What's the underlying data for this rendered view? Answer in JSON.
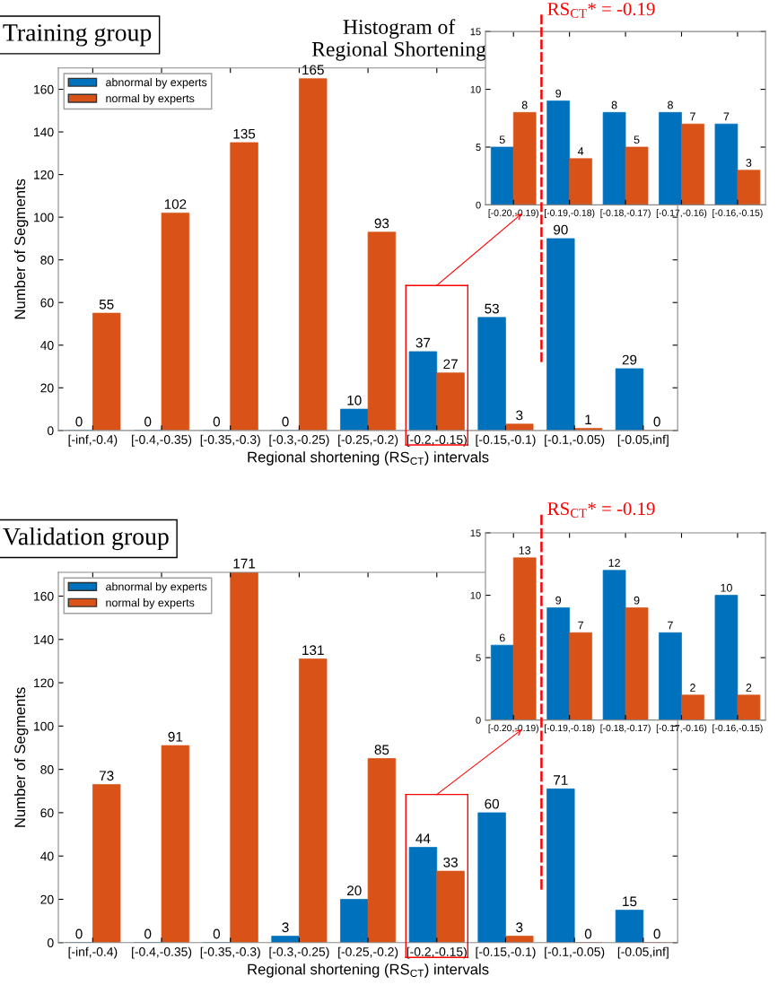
{
  "chart_data": [
    {
      "type": "bar",
      "title": "Histogram of\nRegional Shortening",
      "annotations": [
        "Training group"
      ],
      "xlabel": "Regional shortening (RS$_{CT}$) intervals",
      "ylabel": "Number of Segments",
      "categories": [
        "[-inf,-0.4)",
        "[-0.4,-0.35)",
        "[-0.35,-0.3)",
        "[-0.3,-0.25)",
        "[-0.25,-0.2)",
        "[-0.2,-0.15)",
        "[-0.15,-0.1)",
        "[-0.1,-0.05)",
        "[-0.05,inf]"
      ],
      "series": [
        {
          "name": "abnormal by experts",
          "color": "#0072bd",
          "values": [
            0,
            0,
            0,
            0,
            10,
            37,
            53,
            90,
            29
          ]
        },
        {
          "name": "normal by experts",
          "color": "#d95319",
          "values": [
            55,
            102,
            135,
            165,
            93,
            27,
            3,
            1,
            0
          ]
        }
      ],
      "ylim": [
        0,
        170
      ],
      "yticks": [
        0,
        20,
        40,
        60,
        80,
        100,
        120,
        140,
        160
      ],
      "data_labels": true,
      "legend": "top left",
      "grid": false
    },
    {
      "type": "bar",
      "categories": [
        "[-0.20,-0.19)",
        "[-0.19,-0.18)",
        "[-0.18,-0.17)",
        "[-0.17,-0.16)",
        "[-0.16,-0.15)"
      ],
      "series": [
        {
          "color": "#0072bd",
          "values": [
            5,
            9,
            8,
            8,
            7
          ]
        },
        {
          "color": "#d95319",
          "values": [
            8,
            4,
            5,
            7,
            3
          ]
        }
      ],
      "ylim": [
        0,
        15
      ],
      "yticks": [
        0,
        5,
        10,
        15
      ],
      "data_labels": true,
      "grid": false,
      "annotations": [
        "RS$_{CT}$* = -0.19"
      ]
    },
    {
      "type": "bar",
      "annotations": [
        "Validation group"
      ],
      "xlabel": "Regional shortening (RS$_{CT}$) intervals",
      "ylabel": "Number of Segments",
      "categories": [
        "[-inf,-0.4)",
        "[-0.4,-0.35)",
        "[-0.35,-0.3)",
        "[-0.3,-0.25)",
        "[-0.25,-0.2)",
        "[-0.2,-0.15)",
        "[-0.15,-0.1)",
        "[-0.1,-0.05)",
        "[-0.05,inf]"
      ],
      "series": [
        {
          "name": "abnormal by experts",
          "color": "#0072bd",
          "values": [
            0,
            0,
            0,
            3,
            20,
            44,
            60,
            71,
            15
          ]
        },
        {
          "name": "normal by experts",
          "color": "#d95319",
          "values": [
            73,
            91,
            171,
            131,
            85,
            33,
            3,
            0,
            0
          ]
        }
      ],
      "ylim": [
        0,
        171
      ],
      "yticks": [
        0,
        20,
        40,
        60,
        80,
        100,
        120,
        140,
        160
      ],
      "data_labels": true,
      "legend": "top left",
      "grid": false
    },
    {
      "type": "bar",
      "categories": [
        "[-0.20,-0.19)",
        "[-0.19,-0.18)",
        "[-0.18,-0.17)",
        "[-0.17,-0.16)",
        "[-0.16,-0.15)"
      ],
      "series": [
        {
          "color": "#0072bd",
          "values": [
            6,
            9,
            12,
            7,
            10
          ]
        },
        {
          "color": "#d95319",
          "values": [
            13,
            7,
            9,
            2,
            2
          ]
        }
      ],
      "ylim": [
        0,
        15
      ],
      "yticks": [
        0,
        5,
        10,
        15
      ],
      "data_labels": true,
      "grid": false,
      "annotations": [
        "RS$_{CT}$* = -0.19"
      ]
    }
  ]
}
